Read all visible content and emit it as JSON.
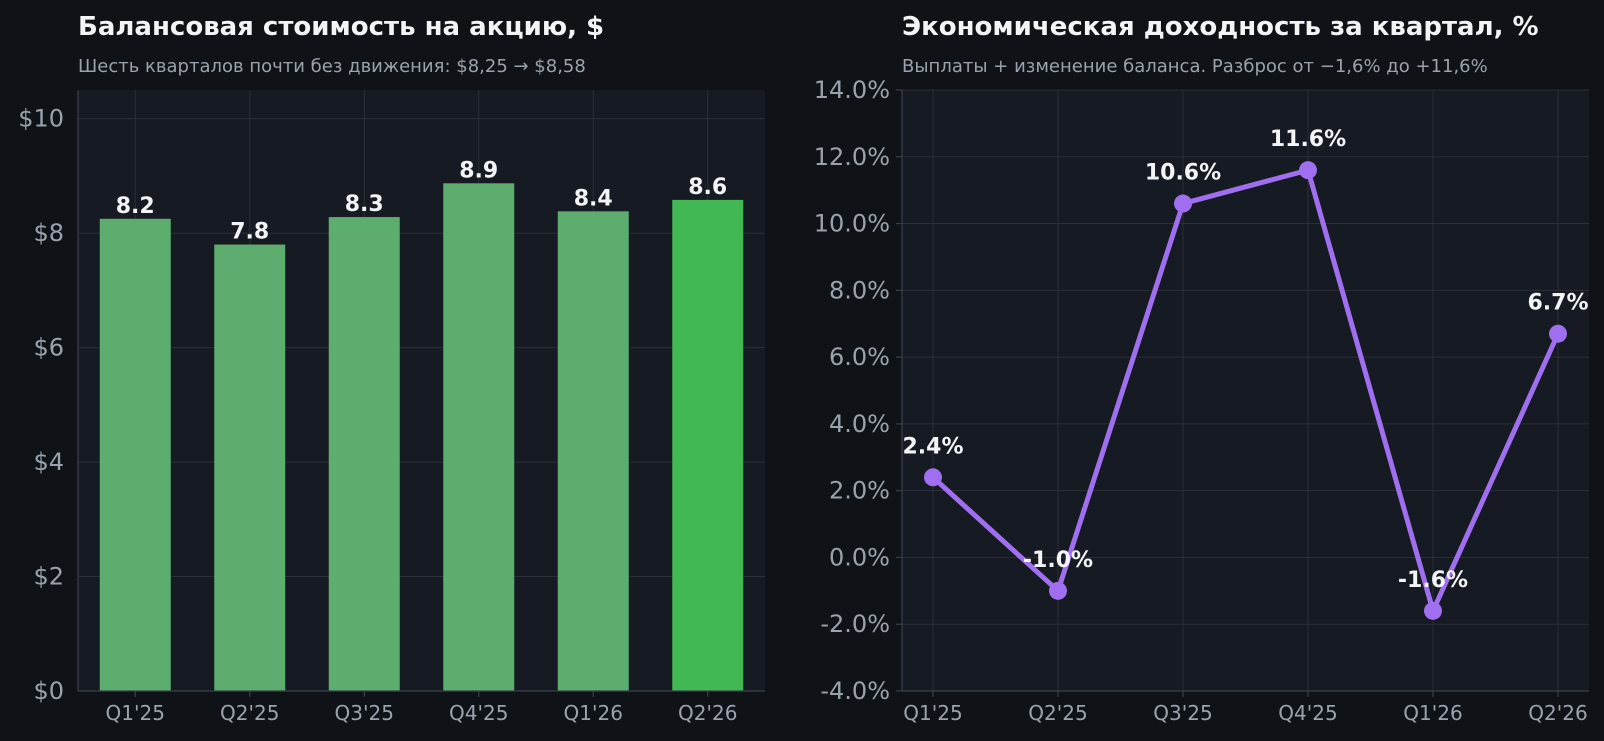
{
  "chart_data": [
    {
      "type": "bar",
      "title": "Балансовая стоимость на акцию, $",
      "subtitle": "Шесть кварталов почти без движения: $8,25 → $8,58",
      "categories": [
        "Q1'25",
        "Q2'25",
        "Q3'25",
        "Q4'25",
        "Q1'26",
        "Q2'26"
      ],
      "values": [
        8.25,
        7.8,
        8.28,
        8.87,
        8.38,
        8.58
      ],
      "value_labels": [
        "8.2",
        "7.8",
        "8.3",
        "8.9",
        "8.4",
        "8.6"
      ],
      "ylim": [
        0,
        10.5
      ],
      "yticks": [
        0,
        2,
        4,
        6,
        8,
        10
      ],
      "ytick_labels": [
        "$0",
        "$2",
        "$4",
        "$6",
        "$8",
        "$10"
      ],
      "grid": true,
      "colors": {
        "bar": "#5dad6f",
        "highlight": "#41b853",
        "highlight_index": 5
      }
    },
    {
      "type": "line",
      "title": "Экономическая доходность за квартал, %",
      "subtitle": "Выплаты + изменение баланса. Разброс от −1,6% до +11,6%",
      "categories": [
        "Q1'25",
        "Q2'25",
        "Q3'25",
        "Q4'25",
        "Q1'26",
        "Q2'26"
      ],
      "values": [
        2.4,
        -1.0,
        10.6,
        11.6,
        -1.6,
        6.7
      ],
      "value_labels": [
        "2.4%",
        "-1.0%",
        "10.6%",
        "11.6%",
        "-1.6%",
        "6.7%"
      ],
      "ylim": [
        -4,
        14
      ],
      "yticks": [
        -4,
        -2,
        0,
        2,
        4,
        6,
        8,
        10,
        12,
        14
      ],
      "ytick_labels": [
        "-4.0%",
        "-2.0%",
        "0.0%",
        "2.0%",
        "4.0%",
        "6.0%",
        "8.0%",
        "10.0%",
        "12.0%",
        "14.0%"
      ],
      "grid": true,
      "colors": {
        "line": "#a06ff0"
      }
    }
  ]
}
